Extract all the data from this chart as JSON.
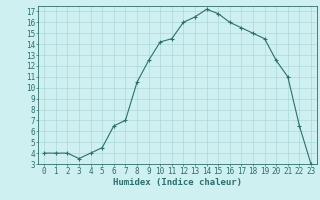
{
  "x": [
    0,
    1,
    2,
    3,
    4,
    5,
    6,
    7,
    8,
    9,
    10,
    11,
    12,
    13,
    14,
    15,
    16,
    17,
    18,
    19,
    20,
    21,
    22,
    23
  ],
  "y": [
    4,
    4,
    4,
    3.5,
    4,
    4.5,
    6.5,
    7,
    10.5,
    12.5,
    14.2,
    14.5,
    16,
    16.5,
    17.2,
    16.8,
    16,
    15.5,
    15,
    14.5,
    12.5,
    11,
    6.5,
    3
  ],
  "line_color": "#2d6e6e",
  "marker": "+",
  "marker_size": 3,
  "bg_color": "#cff0f0",
  "grid_color": "#aed8d8",
  "xlabel": "Humidex (Indice chaleur)",
  "xlim": [
    -0.5,
    23.5
  ],
  "ylim": [
    3,
    17.5
  ],
  "yticks": [
    3,
    4,
    5,
    6,
    7,
    8,
    9,
    10,
    11,
    12,
    13,
    14,
    15,
    16,
    17
  ],
  "xticks": [
    0,
    1,
    2,
    3,
    4,
    5,
    6,
    7,
    8,
    9,
    10,
    11,
    12,
    13,
    14,
    15,
    16,
    17,
    18,
    19,
    20,
    21,
    22,
    23
  ],
  "axis_color": "#2d6e6e",
  "font_size": 5.5
}
